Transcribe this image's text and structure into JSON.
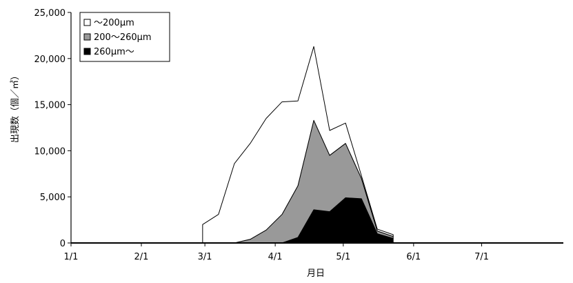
{
  "chart_data": {
    "type": "area",
    "stacked": true,
    "xlabel": "月日",
    "ylabel": "出現数（個／㎥）",
    "ylim": [
      0,
      25000
    ],
    "yticks": [
      0,
      5000,
      10000,
      15000,
      20000,
      25000
    ],
    "ytick_labels": [
      "0",
      "5,000",
      "10,000",
      "15,000",
      "20,000",
      "25,000"
    ],
    "xtick_labels": [
      "1/1",
      "2/1",
      "3/1",
      "4/1",
      "5/1",
      "6/1",
      "7/1"
    ],
    "xtick_days": [
      0,
      31,
      59,
      90,
      120,
      151,
      181
    ],
    "xlim_days": [
      0,
      217
    ],
    "grid": false,
    "legend_position": "top-left",
    "sample_dates": [
      "2/28",
      "3/8",
      "3/15",
      "3/22",
      "3/29",
      "4/5",
      "4/12",
      "4/19",
      "4/26",
      "5/3",
      "5/10",
      "5/17",
      "5/24"
    ],
    "sample_days": [
      58,
      65,
      72,
      79,
      86,
      93,
      100,
      107,
      114,
      121,
      128,
      135,
      142
    ],
    "series": [
      {
        "name": "260μm～",
        "fill": "#000000",
        "values": [
          0,
          0,
          0,
          0,
          0,
          0,
          600,
          3600,
          3400,
          4900,
          4800,
          1000,
          500
        ]
      },
      {
        "name": "200～260μm",
        "fill": "#999999",
        "values": [
          0,
          0,
          0,
          400,
          1400,
          3100,
          5600,
          9700,
          6100,
          5900,
          2200,
          300,
          200
        ]
      },
      {
        "name": "～200μm",
        "fill": "#ffffff",
        "values": [
          2000,
          3100,
          8600,
          10400,
          12100,
          12200,
          9200,
          8000,
          2700,
          2200,
          300,
          200,
          200
        ]
      }
    ]
  }
}
